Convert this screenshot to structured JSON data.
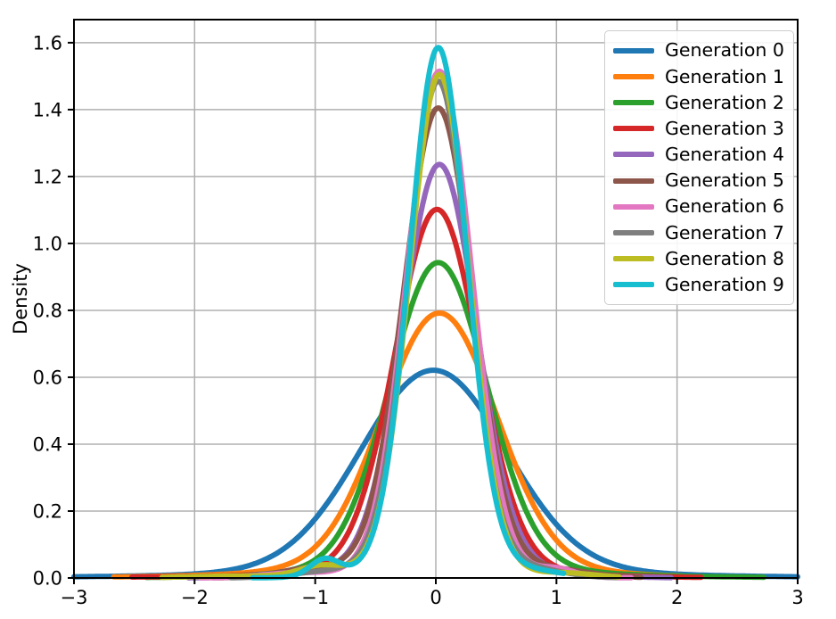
{
  "chart_data": {
    "type": "line",
    "subtype": "kde-density-curves",
    "title": "",
    "xlabel": "",
    "ylabel": "Density",
    "xlim": [
      -3,
      3
    ],
    "ylim": [
      0,
      1.669
    ],
    "x_ticks": [
      -3,
      -2,
      -1,
      0,
      1,
      2,
      3
    ],
    "x_tick_labels": [
      "−3",
      "−2",
      "−1",
      "0",
      "1",
      "2",
      "3"
    ],
    "y_ticks": [
      0.0,
      0.2,
      0.4,
      0.6,
      0.8,
      1.0,
      1.2,
      1.4,
      1.6
    ],
    "y_tick_labels": [
      "0.0",
      "0.2",
      "0.4",
      "0.6",
      "0.8",
      "1.0",
      "1.2",
      "1.4",
      "1.6"
    ],
    "grid": true,
    "grid_color": "#b0b0b0",
    "axes_edge_color": "#000000",
    "legend_position": "upper right",
    "line_width": 6,
    "series": [
      {
        "name": "Generation 0",
        "color": "#1f77b4",
        "peak": {
          "x": -0.02,
          "y": 0.62
        },
        "approx_sigma": 0.62,
        "domain": [
          -3.0,
          3.0
        ],
        "components": [
          {
            "mu": -0.02,
            "sigma": 0.6,
            "h": 0.595
          },
          {
            "mu": 0.0,
            "sigma": 1.25,
            "h": 0.02
          },
          {
            "mu": 0.0,
            "sigma": 2.3,
            "h": 0.006
          }
        ]
      },
      {
        "name": "Generation 1",
        "color": "#ff7f0e",
        "peak": {
          "x": 0.03,
          "y": 0.79
        },
        "approx_sigma": 0.5,
        "domain": [
          -2.67,
          2.05
        ],
        "components": [
          {
            "mu": 0.03,
            "sigma": 0.47,
            "h": 0.755
          },
          {
            "mu": 0.0,
            "sigma": 1.0,
            "h": 0.03
          },
          {
            "mu": -0.3,
            "sigma": 1.6,
            "h": 0.007
          }
        ]
      },
      {
        "name": "Generation 2",
        "color": "#2ca02c",
        "peak": {
          "x": 0.02,
          "y": 0.94
        },
        "approx_sigma": 0.42,
        "domain": [
          -2.4,
          2.72
        ],
        "components": [
          {
            "mu": 0.02,
            "sigma": 0.4,
            "h": 0.905
          },
          {
            "mu": 0.0,
            "sigma": 0.85,
            "h": 0.03
          },
          {
            "mu": 0.4,
            "sigma": 1.4,
            "h": 0.008
          }
        ]
      },
      {
        "name": "Generation 3",
        "color": "#d62728",
        "peak": {
          "x": 0.01,
          "y": 1.1
        },
        "approx_sigma": 0.36,
        "domain": [
          -2.52,
          2.2
        ],
        "components": [
          {
            "mu": 0.01,
            "sigma": 0.345,
            "h": 1.065
          },
          {
            "mu": 0.0,
            "sigma": 0.75,
            "h": 0.03
          },
          {
            "mu": -0.4,
            "sigma": 1.5,
            "h": 0.007
          }
        ]
      },
      {
        "name": "Generation 4",
        "color": "#9467bd",
        "peak": {
          "x": 0.03,
          "y": 1.24
        },
        "approx_sigma": 0.31,
        "domain": [
          -2.05,
          1.95
        ],
        "components": [
          {
            "mu": 0.03,
            "sigma": 0.305,
            "h": 1.2
          },
          {
            "mu": 0.0,
            "sigma": 0.65,
            "h": 0.035
          },
          {
            "mu": -1.15,
            "sigma": 0.3,
            "h": 0.012
          },
          {
            "mu": 0.9,
            "sigma": 0.45,
            "h": 0.008
          }
        ]
      },
      {
        "name": "Generation 5",
        "color": "#8c564b",
        "peak": {
          "x": 0.02,
          "y": 1.41
        },
        "approx_sigma": 0.29,
        "domain": [
          -1.85,
          1.7
        ],
        "components": [
          {
            "mu": 0.02,
            "sigma": 0.285,
            "h": 1.365
          },
          {
            "mu": 0.0,
            "sigma": 0.6,
            "h": 0.04
          },
          {
            "mu": -1.05,
            "sigma": 0.25,
            "h": 0.022
          },
          {
            "mu": 1.0,
            "sigma": 0.3,
            "h": 0.018
          }
        ]
      },
      {
        "name": "Generation 6",
        "color": "#e377c2",
        "peak": {
          "x": 0.03,
          "y": 1.52
        },
        "approx_sigma": 0.27,
        "domain": [
          -1.95,
          1.62
        ],
        "components": [
          {
            "mu": 0.03,
            "sigma": 0.265,
            "h": 1.475
          },
          {
            "mu": 0.0,
            "sigma": 0.55,
            "h": 0.04
          },
          {
            "mu": -1.2,
            "sigma": 0.25,
            "h": 0.012
          },
          {
            "mu": 1.0,
            "sigma": 0.15,
            "h": 0.022
          }
        ]
      },
      {
        "name": "Generation 7",
        "color": "#7f7f7f",
        "peak": {
          "x": 0.02,
          "y": 1.48
        },
        "approx_sigma": 0.25,
        "domain": [
          -1.7,
          1.5
        ],
        "components": [
          {
            "mu": 0.02,
            "sigma": 0.25,
            "h": 1.445
          },
          {
            "mu": 0.0,
            "sigma": 0.55,
            "h": 0.04
          },
          {
            "mu": 0.8,
            "sigma": 0.25,
            "h": 0.018
          },
          {
            "mu": -0.9,
            "sigma": 0.3,
            "h": 0.012
          }
        ]
      },
      {
        "name": "Generation 8",
        "color": "#bcbd22",
        "peak": {
          "x": 0.03,
          "y": 1.51
        },
        "approx_sigma": 0.25,
        "domain": [
          -2.27,
          1.52
        ],
        "components": [
          {
            "mu": 0.03,
            "sigma": 0.245,
            "h": 1.465
          },
          {
            "mu": 0.0,
            "sigma": 0.5,
            "h": 0.04
          },
          {
            "mu": -0.95,
            "sigma": 0.18,
            "h": 0.03
          },
          {
            "mu": -1.6,
            "sigma": 0.45,
            "h": 0.006
          },
          {
            "mu": 1.1,
            "sigma": 0.25,
            "h": 0.012
          }
        ]
      },
      {
        "name": "Generation 9",
        "color": "#17becf",
        "peak": {
          "x": 0.02,
          "y": 1.59
        },
        "approx_sigma": 0.24,
        "domain": [
          -1.52,
          1.06
        ],
        "components": [
          {
            "mu": 0.02,
            "sigma": 0.235,
            "h": 1.54
          },
          {
            "mu": 0.0,
            "sigma": 0.5,
            "h": 0.045
          },
          {
            "mu": -0.92,
            "sigma": 0.12,
            "h": 0.05
          },
          {
            "mu": 0.75,
            "sigma": 0.3,
            "h": 0.015
          }
        ]
      }
    ]
  }
}
